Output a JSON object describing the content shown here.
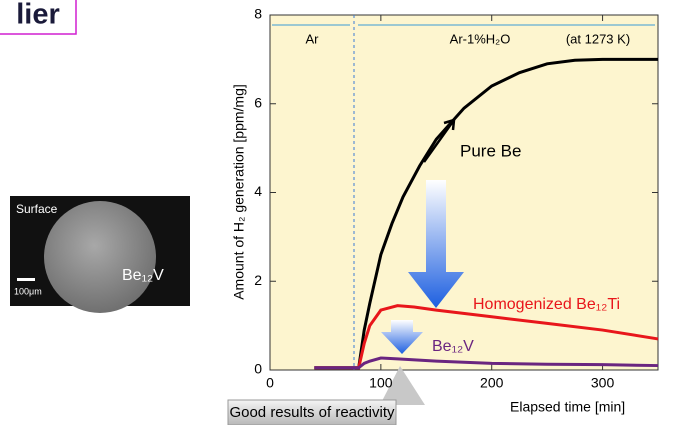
{
  "slide_title": "lier",
  "inset": {
    "label": "Surface",
    "scale": "100μm",
    "material": "Be₁₂V"
  },
  "chart_data": {
    "type": "line",
    "x_label": "Elapsed time [min]",
    "y_label": "Amount of H₂ generation [ppm/mg]",
    "annotations": {
      "region_1": "Ar",
      "region_2": "Ar-1%H₂O",
      "condition": "(at 1273 K)",
      "callout": "Good results of reactivity"
    },
    "xlim": [
      0,
      350
    ],
    "ylim": [
      0,
      8
    ],
    "xticks": [
      0,
      100,
      200,
      300
    ],
    "yticks": [
      0,
      2,
      4,
      6,
      8
    ],
    "grid": false,
    "series": [
      {
        "name": "Pure Be",
        "color": "#000000",
        "x": [
          40,
          80,
          85,
          90,
          100,
          110,
          120,
          135,
          150,
          175,
          200,
          225,
          250,
          275,
          300,
          325,
          350
        ],
        "values": [
          0.05,
          0.05,
          0.9,
          1.5,
          2.6,
          3.3,
          3.9,
          4.6,
          5.2,
          5.9,
          6.4,
          6.7,
          6.9,
          6.98,
          7.0,
          7.0,
          7.0
        ]
      },
      {
        "name": "Homogenized Be₁₂Ti",
        "color": "#e8161b",
        "x": [
          40,
          80,
          85,
          90,
          100,
          115,
          130,
          150,
          200,
          250,
          300,
          350
        ],
        "values": [
          0.05,
          0.05,
          0.6,
          1.0,
          1.35,
          1.45,
          1.42,
          1.35,
          1.2,
          1.05,
          0.9,
          0.7
        ]
      },
      {
        "name": "Be₁₂V",
        "color": "#6a2580",
        "x": [
          40,
          80,
          85,
          90,
          100,
          115,
          150,
          200,
          250,
          300,
          350
        ],
        "values": [
          0.05,
          0.05,
          0.15,
          0.2,
          0.27,
          0.25,
          0.2,
          0.15,
          0.13,
          0.12,
          0.1
        ]
      }
    ]
  }
}
